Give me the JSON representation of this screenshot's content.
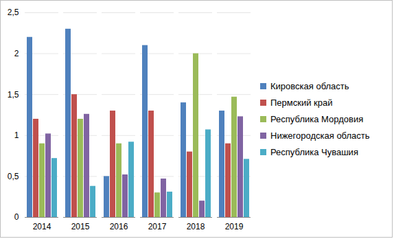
{
  "chart_data": {
    "type": "bar",
    "categories": [
      "2014",
      "2015",
      "2016",
      "2017",
      "2018",
      "2019"
    ],
    "series": [
      {
        "name": "Кировская область",
        "color": "#4F81BD",
        "values": [
          2.2,
          2.3,
          0.5,
          2.1,
          1.4,
          1.3
        ]
      },
      {
        "name": "Пермский край",
        "color": "#C0504D",
        "values": [
          1.2,
          1.5,
          1.3,
          1.3,
          0.8,
          0.9
        ]
      },
      {
        "name": "Республика Мордовия",
        "color": "#9BBB59",
        "values": [
          0.9,
          1.2,
          0.9,
          0.3,
          2.0,
          1.47
        ]
      },
      {
        "name": "Нижегородская область",
        "color": "#8064A2",
        "values": [
          1.02,
          1.26,
          0.52,
          0.47,
          0.2,
          1.23
        ]
      },
      {
        "name": "Республика Чувашия",
        "color": "#4BACC6",
        "values": [
          0.72,
          0.38,
          0.92,
          0.31,
          1.07,
          0.71
        ]
      }
    ],
    "ylim": [
      0,
      2.5
    ],
    "yticks": [
      0,
      {
        "value": 0.5,
        "label": "0,5"
      },
      1,
      {
        "value": 1.5,
        "label": "1,5"
      },
      2,
      {
        "value": 2.5,
        "label": "2,5"
      }
    ],
    "grid": true,
    "legend": "right"
  }
}
